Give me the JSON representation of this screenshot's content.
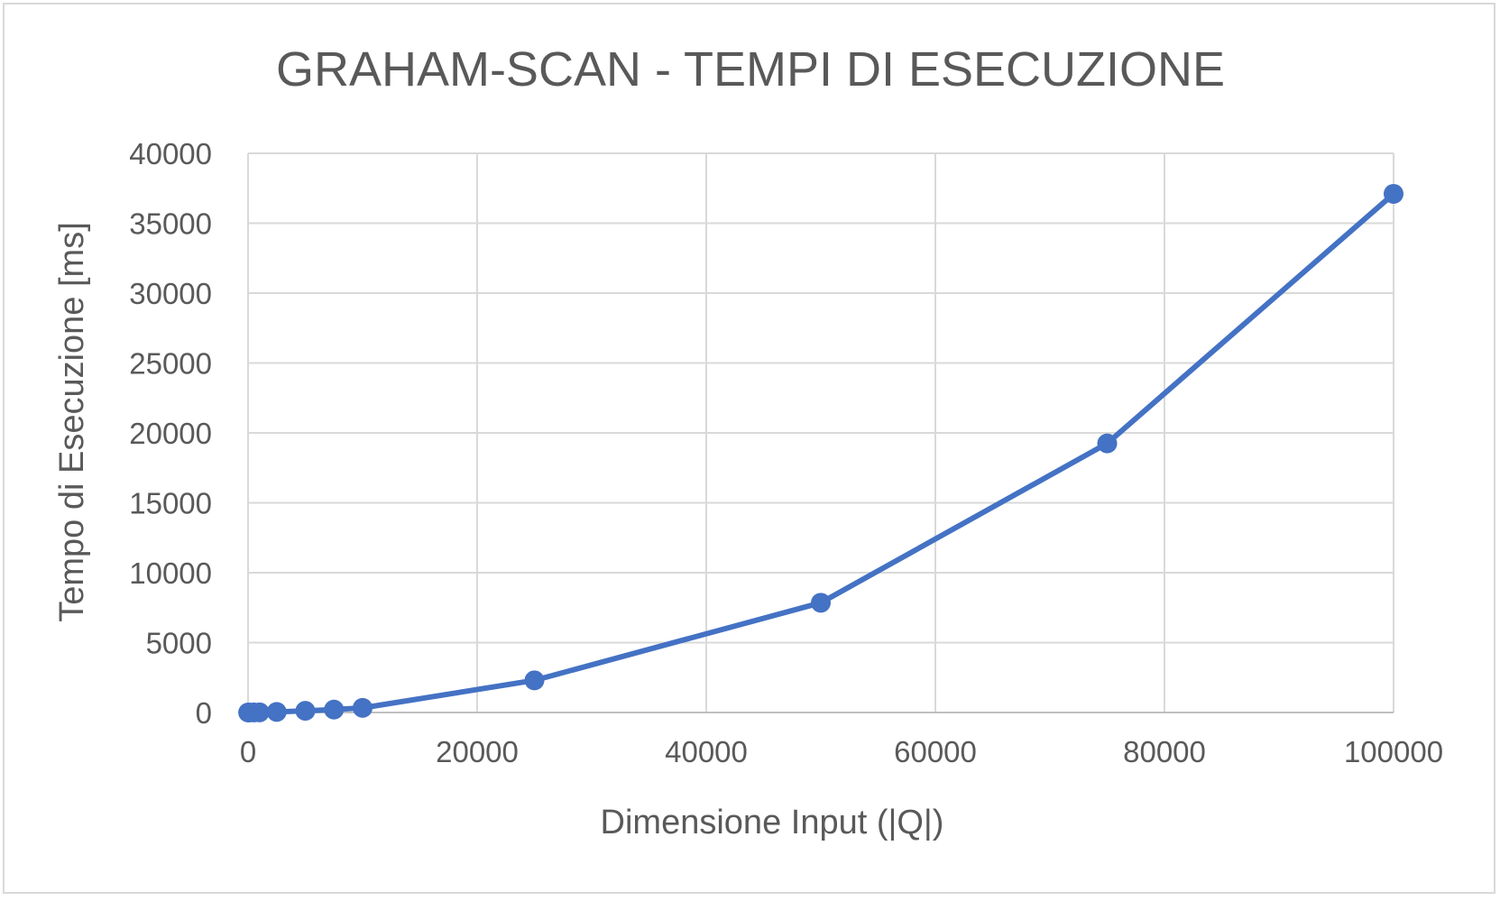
{
  "chart_data": {
    "type": "scatter",
    "title": "GRAHAM-SCAN - TEMPI DI ESECUZIONE",
    "xlabel": "Dimensione Input (|Q|)",
    "ylabel": "Tempo di Esecuzione [ms]",
    "xlim": [
      0,
      100000
    ],
    "ylim": [
      0,
      40000
    ],
    "x_ticks": [
      "0",
      "20000",
      "40000",
      "60000",
      "80000",
      "100000"
    ],
    "y_ticks": [
      "0",
      "5000",
      "10000",
      "15000",
      "20000",
      "25000",
      "30000",
      "35000",
      "40000"
    ],
    "grid": true,
    "line_color": "#4472c4",
    "series": [
      {
        "x": [
          10,
          100,
          500,
          1000,
          2500,
          5000,
          7500,
          10000,
          25000,
          50000,
          75000,
          100000
        ],
        "y": [
          0,
          1,
          5,
          12,
          40,
          120,
          210,
          330,
          2300,
          7850,
          19250,
          37100
        ]
      }
    ]
  }
}
